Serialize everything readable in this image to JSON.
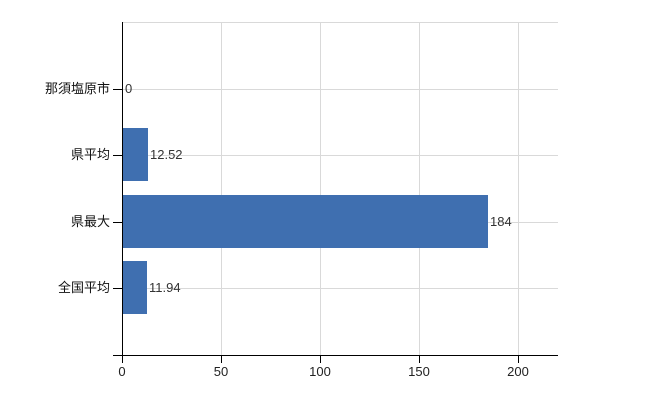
{
  "chart_data": {
    "type": "bar",
    "orientation": "horizontal",
    "categories": [
      "那須塩原市",
      "県平均",
      "県最大",
      "全国平均"
    ],
    "values": [
      0,
      12.52,
      184,
      11.94
    ],
    "value_labels": [
      "0",
      "12.52",
      "184",
      "11.94"
    ],
    "x_ticks": [
      0,
      50,
      100,
      150,
      200
    ],
    "x_tick_labels": [
      "0",
      "50",
      "100",
      "150",
      "200"
    ],
    "xlim": [
      0,
      220
    ],
    "grid": "on",
    "legend": "none",
    "colors": {
      "bar": "#3f6fb0",
      "grid": "#d9d9d9",
      "axis": "#000000",
      "category_text": "#111111",
      "value_text": "#333333",
      "tick_text": "#222222",
      "background": "#ffffff"
    }
  }
}
